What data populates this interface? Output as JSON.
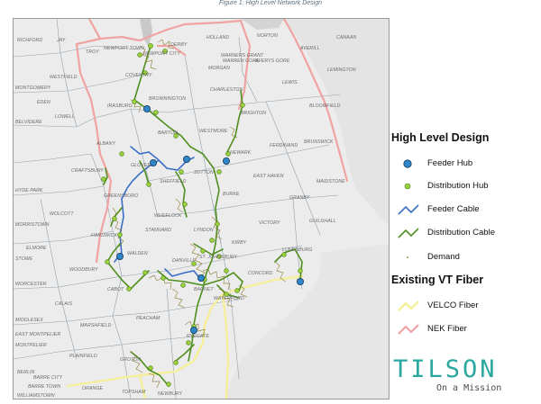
{
  "caption": "Figure 1: High Level Network Design",
  "map": {
    "towns": [
      "RICHFORD",
      "JAY",
      "TROY",
      "NEWPORT TOWN",
      "NEWPORT CITY",
      "DERBY",
      "HOLLAND",
      "NORTON",
      "CANAAN",
      "AVERILL",
      "WARNERS GRANT",
      "WARREN GORE",
      "AVERYS GORE",
      "MORGAN",
      "LEMINGTON",
      "WESTFIELD",
      "COVENTRY",
      "MONTGOMERY",
      "EDEN",
      "LOWELL",
      "IRASBURG",
      "BROWNINGTON",
      "CHARLESTON",
      "LEWIS",
      "BLOOMFIELD",
      "BELVIDERE",
      "ALBANY",
      "BARTON",
      "WESTMORE",
      "BRIGHTON",
      "FERDINAND",
      "BRUNSWICK",
      "CRAFTSBURY",
      "GLOVER",
      "SUTTON",
      "NEWARK",
      "EAST HAVEN",
      "MAIDSTONE",
      "HYDE PARK",
      "GREENSBORO",
      "SHEFFIELD",
      "BURKE",
      "GRANBY",
      "WOLCOTT",
      "WHEELOCK",
      "VICTORY",
      "GUILDHALL",
      "MORRISTOWN",
      "HARDWICK",
      "STANNARD",
      "LYNDON",
      "KIRBY",
      "ELMORE",
      "WALDEN",
      "LUNENBURG",
      "STOWE",
      "WOODBURY",
      "DANVILLE",
      "ST. JOHNSBURY",
      "CONCORD",
      "WORCESTER",
      "CABOT",
      "BARNET",
      "WATERFORD",
      "CALAIS",
      "PEACHAM",
      "MIDDLESEX",
      "MARSHFIELD",
      "EAST MONTPELIER",
      "RYEGATE",
      "MONTPELIER",
      "PLAINFIELD",
      "GROTON",
      "BERLIN",
      "BARRE CITY",
      "ORANGE",
      "BARRE TOWN",
      "TOPSHAM",
      "NEWBURY",
      "WILLIAMSTOWN"
    ]
  },
  "legend": {
    "design_title": "High Level Design",
    "feeder_hub": "Feeder Hub",
    "distribution_hub": "Distribution Hub",
    "feeder_cable": "Feeder Cable",
    "distribution_cable": "Distribution Cable",
    "demand": "Demand",
    "existing_title": "Existing VT Fiber",
    "velco": "VELCO Fiber",
    "nek": "NEK Fiber"
  },
  "colors": {
    "feeder_cable": "#3b6fc7",
    "distribution_cable": "#4f8f1f",
    "feeder_hub": "#2f86c9",
    "distribution_hub": "#9bd23a",
    "velco_fiber": "#f5ef9a",
    "nek_fiber": "#f0a3a3",
    "demand": "#8a7a32",
    "brand": "#2aa7a0"
  },
  "logo": {
    "word": "TILSON",
    "tagline": "On a Mission"
  }
}
